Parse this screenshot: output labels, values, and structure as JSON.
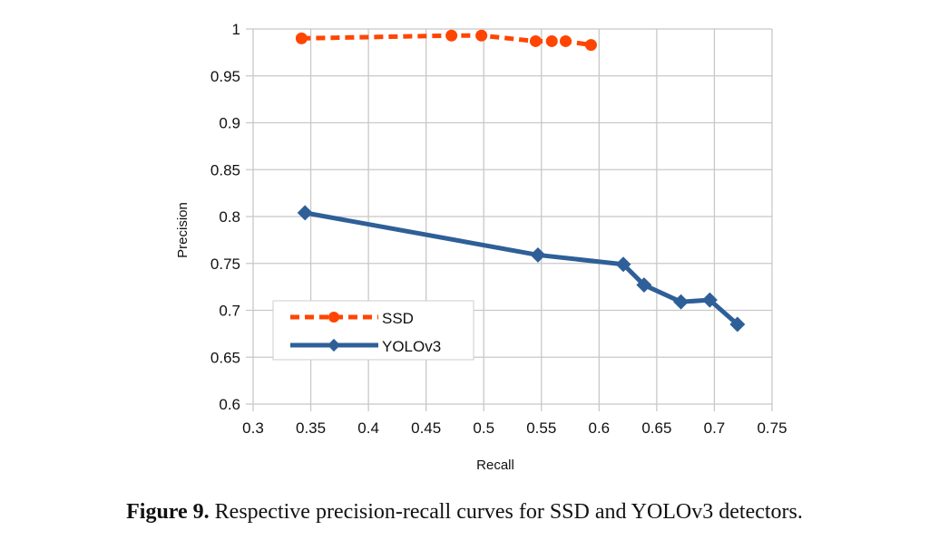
{
  "chart_data": {
    "type": "line",
    "title": "",
    "xlabel": "Recall",
    "ylabel": "Precision",
    "xlim": [
      0.3,
      0.75
    ],
    "ylim": [
      0.6,
      1.0
    ],
    "xticks": [
      "0.3",
      "0.35",
      "0.4",
      "0.45",
      "0.5",
      "0.55",
      "0.6",
      "0.65",
      "0.7",
      "0.75"
    ],
    "yticks": [
      "0.6",
      "0.65",
      "0.7",
      "0.75",
      "0.8",
      "0.85",
      "0.9",
      "0.95",
      "1"
    ],
    "grid": true,
    "legend_position": "lower-left",
    "series": [
      {
        "name": "SSD",
        "color": "#ff4500",
        "line_style": "dashed",
        "marker": "circle",
        "x": [
          0.342,
          0.472,
          0.498,
          0.545,
          0.559,
          0.571,
          0.593
        ],
        "y": [
          0.99,
          0.993,
          0.993,
          0.987,
          0.987,
          0.987,
          0.983
        ]
      },
      {
        "name": "YOLOv3",
        "color": "#2e5f98",
        "line_style": "solid",
        "marker": "diamond",
        "x": [
          0.345,
          0.547,
          0.621,
          0.639,
          0.671,
          0.696,
          0.72
        ],
        "y": [
          0.804,
          0.759,
          0.749,
          0.727,
          0.709,
          0.711,
          0.685
        ]
      }
    ]
  },
  "caption": {
    "label": "Figure 9.",
    "text": " Respective precision-recall curves for SSD and YOLOv3 detectors."
  }
}
